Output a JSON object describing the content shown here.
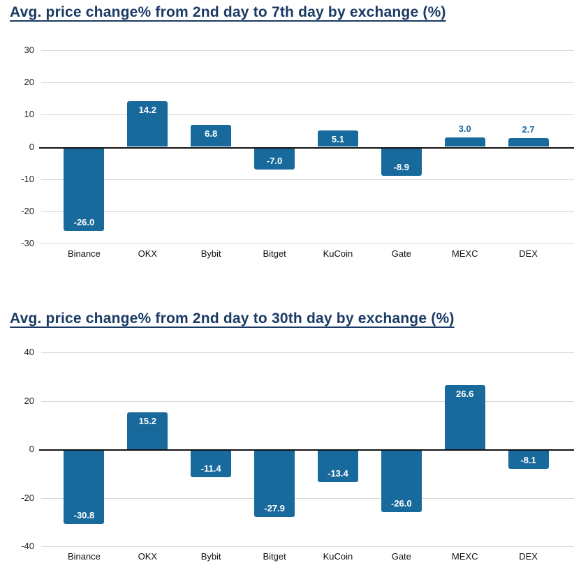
{
  "colors": {
    "bar": "#196a9c",
    "label_inside": "#ffffff",
    "label_outside": "#196a9c",
    "title": "#1a3a64",
    "gridline": "#d8d8d8",
    "zero_line": "#111111"
  },
  "chart_data": [
    {
      "type": "bar",
      "title": "Avg. price change% from 2nd day to 7th day by exchange (%)",
      "categories": [
        "Binance",
        "OKX",
        "Bybit",
        "Bitget",
        "KuCoin",
        "Gate",
        "MEXC",
        "DEX"
      ],
      "values": [
        -26.0,
        14.2,
        6.8,
        -7.0,
        5.1,
        -8.9,
        3.0,
        2.7
      ],
      "value_labels": [
        "-26.0",
        "14.2",
        "6.8",
        "-7.0",
        "5.1",
        "-8.9",
        "3.0",
        "2.7"
      ],
      "xlabel": "",
      "ylabel": "",
      "ylim": [
        -30,
        30
      ],
      "yticks": [
        30,
        20,
        10,
        0,
        -10,
        -20,
        -30
      ],
      "grid": true,
      "legend": false
    },
    {
      "type": "bar",
      "title": "Avg. price change% from 2nd day to 30th day by exchange (%)",
      "categories": [
        "Binance",
        "OKX",
        "Bybit",
        "Bitget",
        "KuCoin",
        "Gate",
        "MEXC",
        "DEX"
      ],
      "values": [
        -30.8,
        15.2,
        -11.4,
        -27.9,
        -13.4,
        -26.0,
        26.6,
        -8.1
      ],
      "value_labels": [
        "-30.8",
        "15.2",
        "-11.4",
        "-27.9",
        "-13.4",
        "-26.0",
        "26.6",
        "-8.1"
      ],
      "xlabel": "",
      "ylabel": "",
      "ylim": [
        -40,
        40
      ],
      "yticks": [
        40,
        20,
        0,
        -20,
        -40
      ],
      "grid": true,
      "legend": false
    }
  ]
}
